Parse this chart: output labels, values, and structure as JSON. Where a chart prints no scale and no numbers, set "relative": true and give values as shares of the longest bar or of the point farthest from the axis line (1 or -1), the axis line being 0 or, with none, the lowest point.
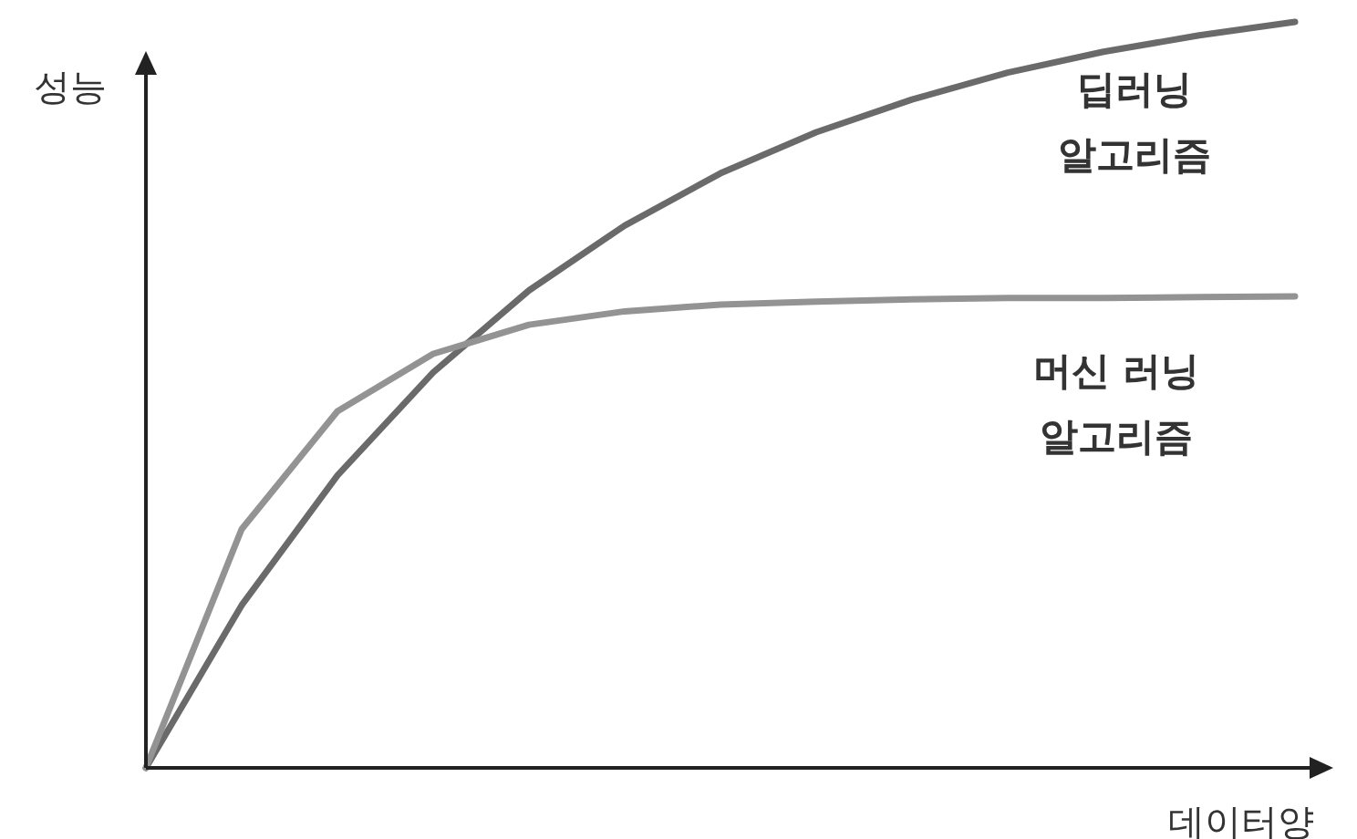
{
  "chart_data": {
    "type": "line",
    "relative": true,
    "xlabel": "데이터양",
    "ylabel": "성능",
    "categories": [
      null,
      null,
      null,
      null,
      null,
      null,
      null,
      null,
      null,
      null,
      null,
      null,
      null
    ],
    "series": [
      {
        "name": "딥러닝 알고리즘",
        "color": "#6a6a6a",
        "values": [
          0,
          0.218,
          0.392,
          0.53,
          0.64,
          0.727,
          0.797,
          0.852,
          0.896,
          0.932,
          0.96,
          0.982,
          1
        ]
      },
      {
        "name": "머신 러닝 알고리즘",
        "color": "#939393",
        "values": [
          0,
          0.32,
          0.478,
          0.555,
          0.594,
          0.612,
          0.621,
          0.625,
          0.628,
          0.63,
          0.63,
          0.631,
          0.632
        ]
      }
    ]
  }
}
